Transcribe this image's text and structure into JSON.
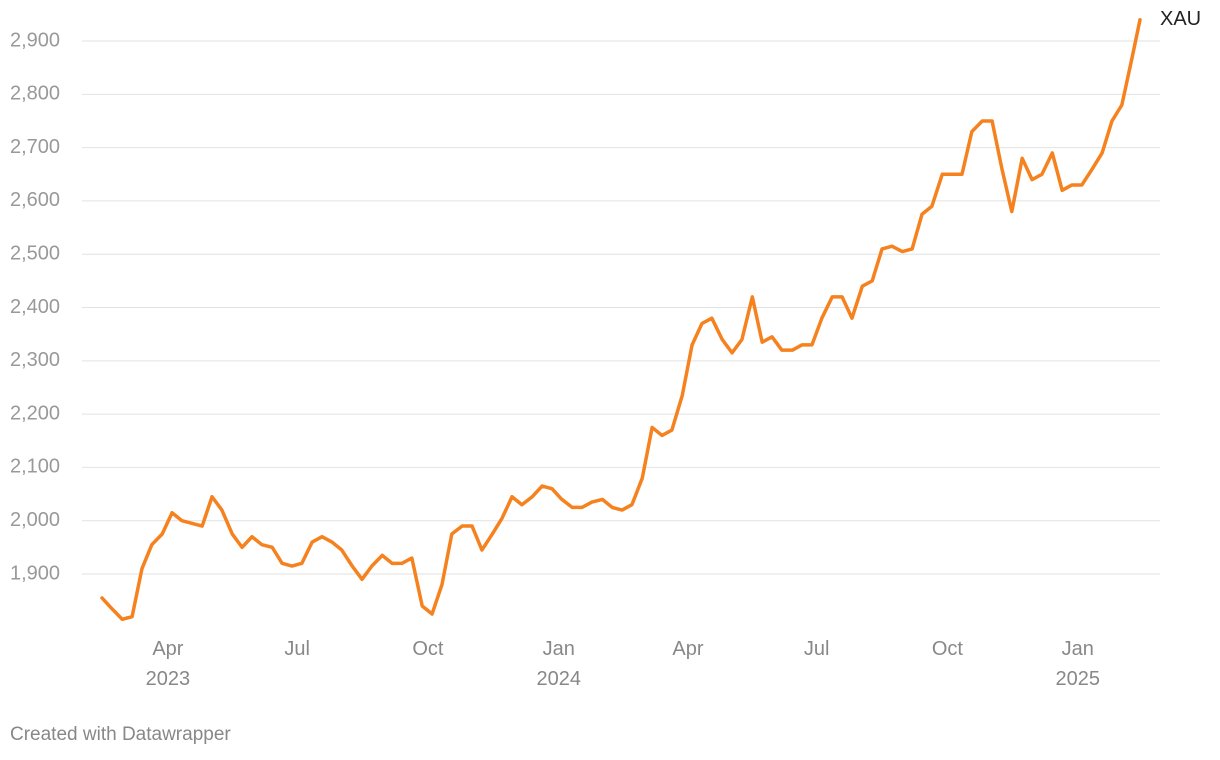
{
  "chart_data": {
    "type": "line",
    "credit": "Created with Datawrapper",
    "x": [
      2023.12,
      2023.139,
      2023.159,
      2023.178,
      2023.197,
      2023.216,
      2023.236,
      2023.255,
      2023.274,
      2023.293,
      2023.313,
      2023.332,
      2023.351,
      2023.371,
      2023.39,
      2023.409,
      2023.428,
      2023.448,
      2023.467,
      2023.486,
      2023.505,
      2023.525,
      2023.544,
      2023.563,
      2023.582,
      2023.602,
      2023.621,
      2023.64,
      2023.66,
      2023.679,
      2023.698,
      2023.717,
      2023.737,
      2023.756,
      2023.775,
      2023.794,
      2023.814,
      2023.833,
      2023.852,
      2023.872,
      2023.891,
      2023.91,
      2023.929,
      2023.949,
      2023.968,
      2023.987,
      2024.006,
      2024.026,
      2024.045,
      2024.064,
      2024.084,
      2024.103,
      2024.122,
      2024.141,
      2024.161,
      2024.18,
      2024.199,
      2024.218,
      2024.238,
      2024.257,
      2024.276,
      2024.295,
      2024.315,
      2024.334,
      2024.353,
      2024.373,
      2024.392,
      2024.411,
      2024.43,
      2024.45,
      2024.469,
      2024.488,
      2024.507,
      2024.527,
      2024.546,
      2024.565,
      2024.585,
      2024.604,
      2024.623,
      2024.642,
      2024.662,
      2024.681,
      2024.7,
      2024.719,
      2024.739,
      2024.758,
      2024.777,
      2024.796,
      2024.816,
      2024.835,
      2024.854,
      2024.873,
      2024.893,
      2024.912,
      2024.931,
      2024.951,
      2024.97,
      2024.989,
      2025.008,
      2025.028,
      2025.047,
      2025.066,
      2025.085,
      2025.105,
      2025.12
    ],
    "series": [
      {
        "name": "XAU",
        "color": "#f5821f",
        "values": [
          1855,
          1835,
          1815,
          1820,
          1910,
          1955,
          1975,
          2015,
          2000,
          1995,
          1990,
          2045,
          2020,
          1975,
          1950,
          1970,
          1955,
          1950,
          1920,
          1915,
          1920,
          1960,
          1970,
          1960,
          1945,
          1915,
          1890,
          1915,
          1935,
          1920,
          1920,
          1930,
          1840,
          1825,
          1880,
          1975,
          1990,
          1990,
          1945,
          1975,
          2005,
          2045,
          2030,
          2045,
          2065,
          2060,
          2040,
          2025,
          2025,
          2035,
          2040,
          2025,
          2020,
          2030,
          2080,
          2175,
          2160,
          2170,
          2235,
          2330,
          2370,
          2380,
          2340,
          2315,
          2340,
          2420,
          2335,
          2345,
          2320,
          2320,
          2330,
          2330,
          2380,
          2420,
          2420,
          2380,
          2440,
          2450,
          2510,
          2515,
          2505,
          2510,
          2575,
          2590,
          2650,
          2650,
          2650,
          2730,
          2750,
          2750,
          2660,
          2580,
          2680,
          2640,
          2650,
          2690,
          2620,
          2630,
          2630,
          2660,
          2690,
          2750,
          2780,
          2870,
          2940
        ]
      }
    ],
    "xlim": [
      2023.12,
      2025.12
    ],
    "xticks": [
      {
        "value": 2023.247,
        "label": "Apr\n2023"
      },
      {
        "value": 2023.496,
        "label": "Jul"
      },
      {
        "value": 2023.748,
        "label": "Oct"
      },
      {
        "value": 2024.0,
        "label": "Jan\n2024"
      },
      {
        "value": 2024.249,
        "label": "Apr"
      },
      {
        "value": 2024.497,
        "label": "Jul"
      },
      {
        "value": 2024.749,
        "label": "Oct"
      },
      {
        "value": 2025.0,
        "label": "Jan\n2025"
      }
    ],
    "ylim": [
      1800,
      2950
    ],
    "yticks": [
      {
        "value": 1900,
        "label": "1,900"
      },
      {
        "value": 2000,
        "label": "2,000"
      },
      {
        "value": 2100,
        "label": "2,100"
      },
      {
        "value": 2200,
        "label": "2,200"
      },
      {
        "value": 2300,
        "label": "2,300"
      },
      {
        "value": 2400,
        "label": "2,400"
      },
      {
        "value": 2500,
        "label": "2,500"
      },
      {
        "value": 2600,
        "label": "2,600"
      },
      {
        "value": 2700,
        "label": "2,700"
      },
      {
        "value": 2800,
        "label": "2,800"
      },
      {
        "value": 2900,
        "label": "2,900"
      }
    ],
    "grid": true
  }
}
